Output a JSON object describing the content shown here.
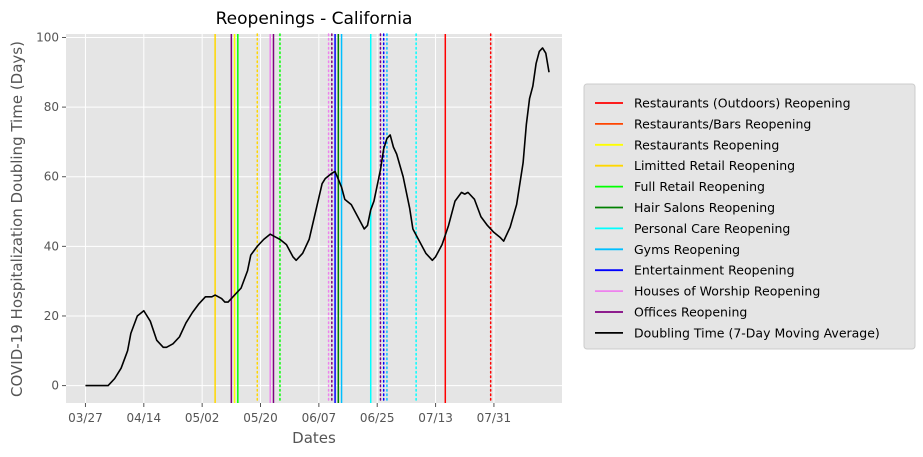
{
  "chart_data": {
    "type": "line",
    "title": "Reopenings - California",
    "xlabel": "Dates",
    "ylabel": "COVID-19 Hospitalization Doubling Time (Days)",
    "x_start": "2020-03-27",
    "x_end": "2020-08-15",
    "xlim": [
      "2020-03-21",
      "2020-08-21"
    ],
    "ylim": [
      -5,
      101
    ],
    "x_ticks": [
      {
        "date": "2020-03-27",
        "label": "03/27"
      },
      {
        "date": "2020-04-14",
        "label": "04/14"
      },
      {
        "date": "2020-05-02",
        "label": "05/02"
      },
      {
        "date": "2020-05-20",
        "label": "05/20"
      },
      {
        "date": "2020-06-07",
        "label": "06/07"
      },
      {
        "date": "2020-06-25",
        "label": "06/25"
      },
      {
        "date": "2020-07-13",
        "label": "07/13"
      },
      {
        "date": "2020-07-31",
        "label": "07/31"
      }
    ],
    "y_ticks": [
      0,
      20,
      40,
      60,
      80,
      100
    ],
    "grid": true,
    "legend_position": "right",
    "series": [
      {
        "name": "Doubling Time (7-Day Moving Average)",
        "color": "#000000",
        "points": [
          [
            "2020-03-27",
            0
          ],
          [
            "2020-03-31",
            0
          ],
          [
            "2020-04-03",
            0
          ],
          [
            "2020-04-05",
            2
          ],
          [
            "2020-04-07",
            5
          ],
          [
            "2020-04-09",
            10
          ],
          [
            "2020-04-10",
            15
          ],
          [
            "2020-04-12",
            20
          ],
          [
            "2020-04-14",
            21.5
          ],
          [
            "2020-04-16",
            18.5
          ],
          [
            "2020-04-18",
            13
          ],
          [
            "2020-04-20",
            11
          ],
          [
            "2020-04-21",
            11
          ],
          [
            "2020-04-23",
            12
          ],
          [
            "2020-04-25",
            14
          ],
          [
            "2020-04-27",
            18
          ],
          [
            "2020-04-29",
            21
          ],
          [
            "2020-05-01",
            23.5
          ],
          [
            "2020-05-03",
            25.5
          ],
          [
            "2020-05-05",
            25.5
          ],
          [
            "2020-05-06",
            26
          ],
          [
            "2020-05-08",
            25
          ],
          [
            "2020-05-09",
            24
          ],
          [
            "2020-05-10",
            24
          ],
          [
            "2020-05-12",
            26
          ],
          [
            "2020-05-14",
            28
          ],
          [
            "2020-05-16",
            33
          ],
          [
            "2020-05-17",
            37.5
          ],
          [
            "2020-05-19",
            40
          ],
          [
            "2020-05-21",
            42
          ],
          [
            "2020-05-23",
            43.5
          ],
          [
            "2020-05-25",
            42.5
          ],
          [
            "2020-05-26",
            42
          ],
          [
            "2020-05-28",
            40.5
          ],
          [
            "2020-05-30",
            37
          ],
          [
            "2020-05-31",
            36
          ],
          [
            "2020-06-02",
            38
          ],
          [
            "2020-06-04",
            42
          ],
          [
            "2020-06-06",
            50
          ],
          [
            "2020-06-08",
            58
          ],
          [
            "2020-06-09",
            59.5
          ],
          [
            "2020-06-11",
            61
          ],
          [
            "2020-06-12",
            61.5
          ],
          [
            "2020-06-14",
            57
          ],
          [
            "2020-06-15",
            53.5
          ],
          [
            "2020-06-17",
            52
          ],
          [
            "2020-06-19",
            48.5
          ],
          [
            "2020-06-21",
            45
          ],
          [
            "2020-06-22",
            46
          ],
          [
            "2020-06-23",
            50.5
          ],
          [
            "2020-06-24",
            53
          ],
          [
            "2020-06-26",
            62
          ],
          [
            "2020-06-27",
            68
          ],
          [
            "2020-06-28",
            71
          ],
          [
            "2020-06-29",
            72
          ],
          [
            "2020-06-30",
            68.5
          ],
          [
            "2020-07-01",
            66.5
          ],
          [
            "2020-07-03",
            60
          ],
          [
            "2020-07-05",
            51
          ],
          [
            "2020-07-06",
            45
          ],
          [
            "2020-07-08",
            41.5
          ],
          [
            "2020-07-10",
            38
          ],
          [
            "2020-07-12",
            36
          ],
          [
            "2020-07-13",
            37
          ],
          [
            "2020-07-15",
            40.5
          ],
          [
            "2020-07-17",
            46
          ],
          [
            "2020-07-19",
            53
          ],
          [
            "2020-07-21",
            55.5
          ],
          [
            "2020-07-22",
            55
          ],
          [
            "2020-07-23",
            55.5
          ],
          [
            "2020-07-25",
            53.5
          ],
          [
            "2020-07-27",
            48.5
          ],
          [
            "2020-07-29",
            46
          ],
          [
            "2020-07-31",
            44
          ],
          [
            "2020-08-02",
            42.5
          ],
          [
            "2020-08-03",
            41.5
          ],
          [
            "2020-08-05",
            45.5
          ],
          [
            "2020-08-07",
            52
          ],
          [
            "2020-08-09",
            64
          ],
          [
            "2020-08-10",
            75
          ],
          [
            "2020-08-11",
            82.5
          ],
          [
            "2020-08-12",
            86
          ],
          [
            "2020-08-13",
            92.5
          ],
          [
            "2020-08-14",
            96
          ],
          [
            "2020-08-15",
            97
          ],
          [
            "2020-08-16",
            95.5
          ],
          [
            "2020-08-17",
            90
          ]
        ]
      }
    ],
    "vlines": [
      {
        "date": "2020-05-06",
        "color": "#ffd700",
        "style": "solid"
      },
      {
        "date": "2020-05-11",
        "color": "#800080",
        "style": "solid"
      },
      {
        "date": "2020-05-12",
        "color": "#ffff00",
        "style": "solid"
      },
      {
        "date": "2020-05-13",
        "color": "#00ff00",
        "style": "solid"
      },
      {
        "date": "2020-05-19",
        "color": "#ffd700",
        "style": "dotted"
      },
      {
        "date": "2020-05-23",
        "color": "#ee82ee",
        "style": "solid"
      },
      {
        "date": "2020-05-24",
        "color": "#800080",
        "style": "solid"
      },
      {
        "date": "2020-05-26",
        "color": "#00ff00",
        "style": "dotted"
      },
      {
        "date": "2020-06-10",
        "color": "#ee82ee",
        "style": "dotted"
      },
      {
        "date": "2020-06-11",
        "color": "#800080",
        "style": "dotted"
      },
      {
        "date": "2020-06-12",
        "color": "#0000ff",
        "style": "solid"
      },
      {
        "date": "2020-06-13",
        "color": "#008000",
        "style": "solid"
      },
      {
        "date": "2020-06-14",
        "color": "#00bfff",
        "style": "solid"
      },
      {
        "date": "2020-06-23",
        "color": "#00ffff",
        "style": "solid"
      },
      {
        "date": "2020-06-26",
        "color": "#800080",
        "style": "dotted"
      },
      {
        "date": "2020-06-27",
        "color": "#0000ff",
        "style": "dotted"
      },
      {
        "date": "2020-06-28",
        "color": "#00bfff",
        "style": "dotted"
      },
      {
        "date": "2020-07-07",
        "color": "#00ffff",
        "style": "dotted"
      },
      {
        "date": "2020-07-16",
        "color": "#ff0000",
        "style": "solid"
      },
      {
        "date": "2020-07-30",
        "color": "#ff0000",
        "style": "dotted"
      }
    ],
    "legend": [
      {
        "label": "Restaurants (Outdoors) Reopening",
        "color": "#ff0000"
      },
      {
        "label": "Restaurants/Bars Reopening",
        "color": "#ff4500"
      },
      {
        "label": "Restaurants Reopening",
        "color": "#ffff00"
      },
      {
        "label": "Limitted Retail Reopening",
        "color": "#ffd700"
      },
      {
        "label": "Full Retail Reopening",
        "color": "#00ff00"
      },
      {
        "label": "Hair Salons Reopening",
        "color": "#008000"
      },
      {
        "label": "Personal Care Reopening",
        "color": "#00ffff"
      },
      {
        "label": "Gyms Reopening",
        "color": "#00bfff"
      },
      {
        "label": "Entertainment Reopening",
        "color": "#0000ff"
      },
      {
        "label": "Houses of Worship Reopening",
        "color": "#ee82ee"
      },
      {
        "label": "Offices Reopening",
        "color": "#800080"
      },
      {
        "label": "Doubling Time (7-Day Moving Average)",
        "color": "#000000"
      }
    ],
    "colors": {
      "plot_background": "#e5e5e5",
      "grid": "#ffffff",
      "tick_text": "#555555"
    }
  }
}
